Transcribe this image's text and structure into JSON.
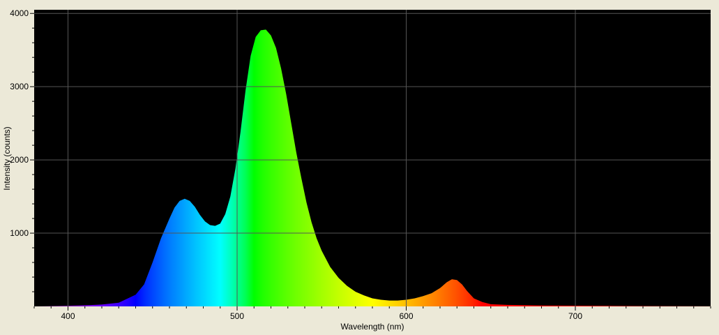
{
  "chart_data": {
    "type": "area",
    "xlabel": "Wavelength (nm)",
    "ylabel": "Intensity (counts)",
    "xlim": [
      380,
      780
    ],
    "ylim": [
      0,
      4050
    ],
    "x_ticks": [
      400,
      500,
      600,
      700
    ],
    "y_ticks": [
      1000,
      2000,
      3000,
      4000
    ],
    "grid": true,
    "fill": "wavelength-colored spectrum",
    "series": [
      {
        "x": [
          380,
          390,
          400,
          410,
          420,
          430,
          440,
          445,
          450,
          455,
          460,
          463,
          466,
          469,
          472,
          475,
          478,
          481,
          484,
          487,
          490,
          493,
          496,
          499,
          502,
          505,
          508,
          511,
          514,
          517,
          520,
          523,
          526,
          529,
          532,
          535,
          538,
          541,
          544,
          547,
          550,
          555,
          560,
          565,
          570,
          575,
          580,
          585,
          590,
          595,
          600,
          605,
          610,
          615,
          620,
          624,
          627,
          630,
          633,
          636,
          640,
          645,
          650,
          660,
          680,
          700,
          720,
          740,
          760,
          780
        ],
        "y": [
          0,
          5,
          10,
          15,
          25,
          50,
          160,
          300,
          600,
          930,
          1200,
          1350,
          1440,
          1470,
          1440,
          1360,
          1250,
          1160,
          1110,
          1100,
          1130,
          1260,
          1500,
          1880,
          2380,
          2950,
          3420,
          3680,
          3770,
          3780,
          3700,
          3530,
          3250,
          2900,
          2500,
          2100,
          1750,
          1420,
          1150,
          930,
          760,
          540,
          390,
          280,
          200,
          150,
          110,
          90,
          80,
          80,
          90,
          110,
          140,
          180,
          250,
          330,
          370,
          360,
          300,
          210,
          110,
          60,
          30,
          20,
          12,
          10,
          8,
          6,
          5,
          4
        ]
      }
    ]
  }
}
